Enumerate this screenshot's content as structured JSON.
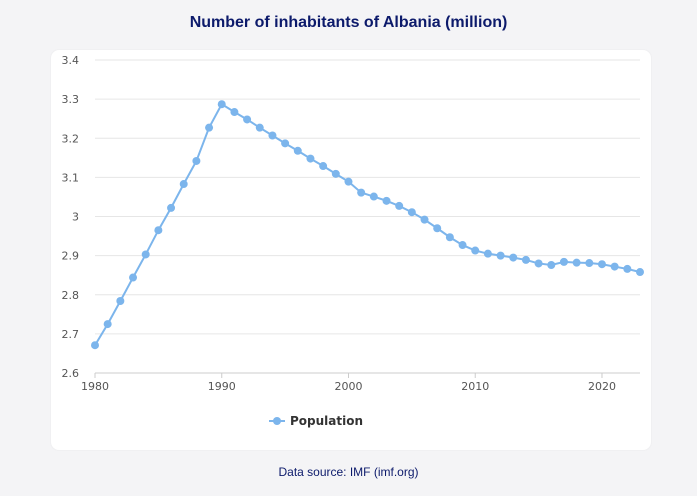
{
  "title": "Number of inhabitants of Albania (million)",
  "source": "Data source: IMF (imf.org)",
  "colors": {
    "series": "#7cb5ec",
    "title": "#0c1a6b",
    "grid": "#e6e6e6"
  },
  "chart_data": {
    "type": "line",
    "title": "Number of inhabitants of Albania (million)",
    "xlabel": "",
    "ylabel": "",
    "xlim": [
      1980,
      2023
    ],
    "ylim": [
      2.6,
      3.4
    ],
    "xticks": [
      1980,
      1990,
      2000,
      2010,
      2020
    ],
    "yticks": [
      2.6,
      2.7,
      2.8,
      2.9,
      3,
      3.1,
      3.2,
      3.3,
      3.4
    ],
    "grid": true,
    "legend": "bottom-center",
    "x": [
      1980,
      1981,
      1982,
      1983,
      1984,
      1985,
      1986,
      1987,
      1988,
      1989,
      1990,
      1991,
      1992,
      1993,
      1994,
      1995,
      1996,
      1997,
      1998,
      1999,
      2000,
      2001,
      2002,
      2003,
      2004,
      2005,
      2006,
      2007,
      2008,
      2009,
      2010,
      2011,
      2012,
      2013,
      2014,
      2015,
      2016,
      2017,
      2018,
      2019,
      2020,
      2021,
      2022,
      2023
    ],
    "series": [
      {
        "name": "Population",
        "values": [
          2.671,
          2.725,
          2.784,
          2.844,
          2.903,
          2.965,
          3.022,
          3.083,
          3.142,
          3.227,
          3.287,
          3.267,
          3.248,
          3.227,
          3.207,
          3.187,
          3.168,
          3.148,
          3.129,
          3.109,
          3.089,
          3.061,
          3.051,
          3.04,
          3.027,
          3.011,
          2.992,
          2.97,
          2.947,
          2.927,
          2.913,
          2.905,
          2.9,
          2.895,
          2.889,
          2.88,
          2.876,
          2.884,
          2.882,
          2.881,
          2.878,
          2.872,
          2.866,
          2.858
        ]
      }
    ]
  }
}
